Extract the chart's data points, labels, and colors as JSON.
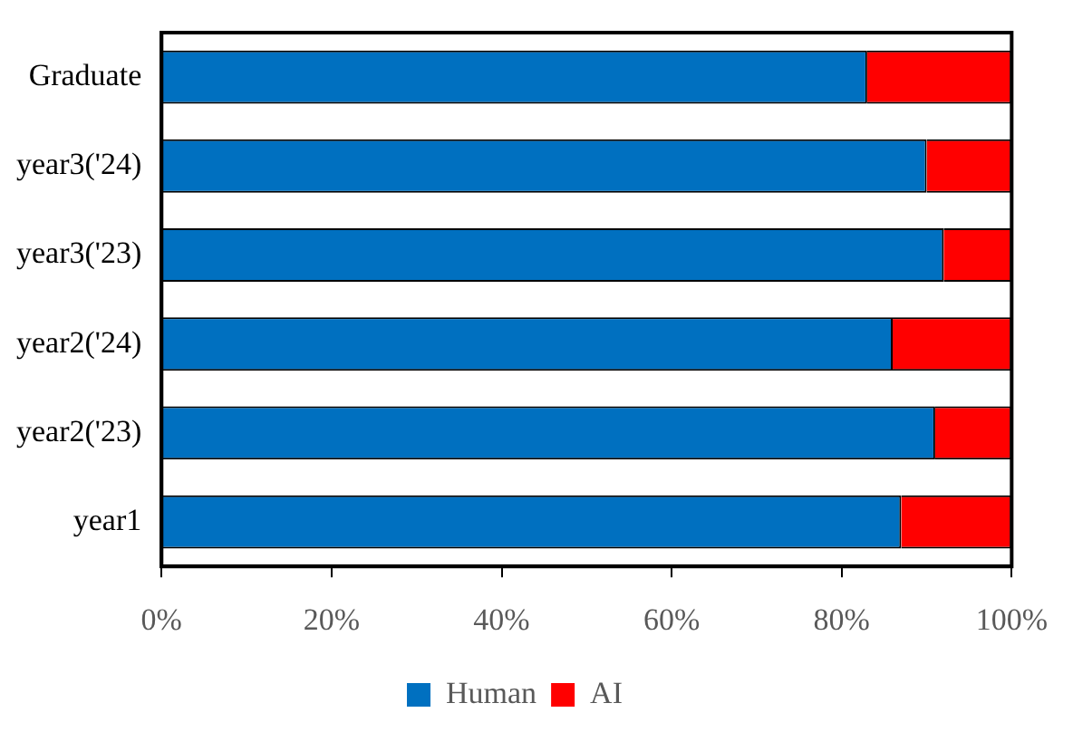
{
  "chart_data": {
    "type": "bar",
    "orientation": "horizontal",
    "stacked": true,
    "categories": [
      "Graduate",
      "year3('24)",
      "year3('23)",
      "year2('24)",
      "year2('23)",
      "year1"
    ],
    "series": [
      {
        "name": "Human",
        "color": "#0070c0",
        "values": [
          83,
          90,
          92,
          86,
          91,
          87
        ]
      },
      {
        "name": "AI",
        "color": "#ff0000",
        "values": [
          17,
          10,
          8,
          14,
          9,
          13
        ]
      }
    ],
    "xlim": [
      0,
      100
    ],
    "xticks": [
      {
        "value": 0,
        "label": "0%"
      },
      {
        "value": 20,
        "label": "20%"
      },
      {
        "value": 40,
        "label": "40%"
      },
      {
        "value": 60,
        "label": "60%"
      },
      {
        "value": 80,
        "label": "80%"
      },
      {
        "value": 100,
        "label": "100%"
      }
    ],
    "grid": false,
    "legend": "bottom"
  }
}
